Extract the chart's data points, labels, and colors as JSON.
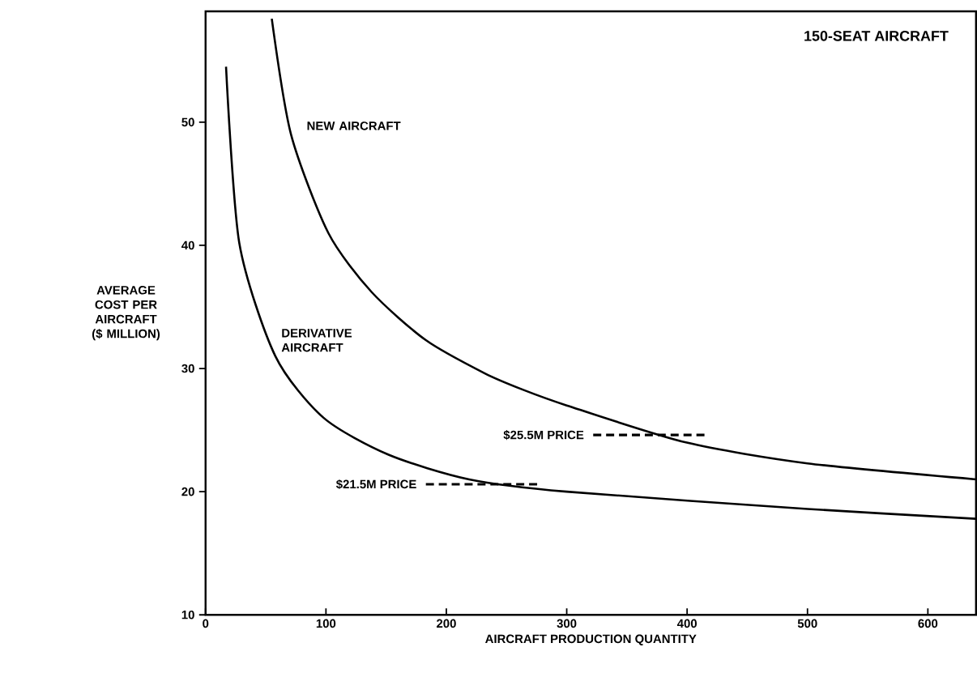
{
  "chart_data": {
    "type": "line",
    "title": "150-SEAT AIRCRAFT",
    "xlabel": "AIRCRAFT PRODUCTION QUANTITY",
    "ylabel": "AVERAGE COST PER AIRCRAFT ($ MILLION)",
    "xlim": [
      0,
      640
    ],
    "ylim": [
      10,
      59
    ],
    "xticks": [
      0,
      100,
      200,
      300,
      400,
      500,
      600
    ],
    "yticks": [
      10,
      20,
      30,
      40,
      50
    ],
    "grid": false,
    "marker": "none",
    "line_style": "solid",
    "series": [
      {
        "name": "NEW AIRCRAFT",
        "color": "#000000",
        "x": [
          55,
          71,
          102,
          138,
          183,
          232,
          263,
          300,
          399,
          500,
          640
        ],
        "values": [
          58.4,
          49,
          41,
          36.2,
          32.3,
          29.6,
          28.3,
          27,
          24,
          22.3,
          21
        ]
      },
      {
        "name": "DERIVATIVE AIRCRAFT",
        "color": "#000000",
        "x": [
          17,
          28,
          58,
          98,
          152,
          219,
          300,
          500,
          640
        ],
        "values": [
          54.5,
          40.2,
          31,
          26,
          23,
          21,
          20,
          18.6,
          17.8
        ]
      },
      {
        "color": "#000000",
        "line_style": "dashed",
        "x": [
          183,
          279
        ],
        "values": [
          20.6,
          20.6
        ]
      },
      {
        "color": "#000000",
        "line_style": "dashed",
        "x": [
          322,
          416
        ],
        "values": [
          24.6,
          24.6
        ]
      }
    ],
    "annotations": [
      {
        "text": "$21.5M PRICE",
        "x": 183,
        "y": 20.6
      },
      {
        "text": "$25.5M PRICE",
        "x": 322,
        "y": 24.6
      }
    ]
  }
}
